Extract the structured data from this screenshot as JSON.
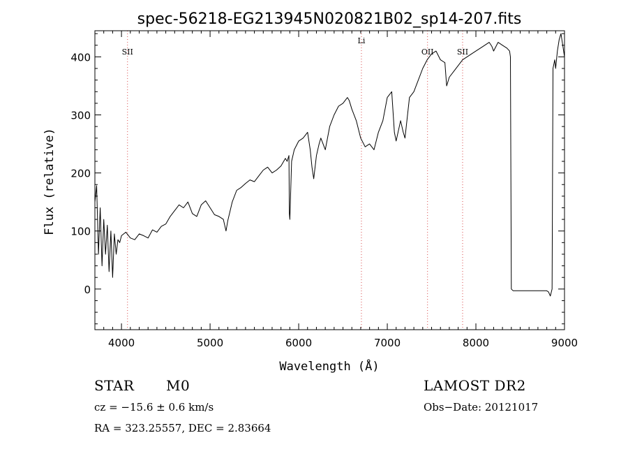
{
  "chart_data": {
    "type": "line",
    "title": "spec-56218-EG213945N020821B02_sp14-207.fits",
    "xlabel": "Wavelength (Å)",
    "ylabel": "Flux (relative)",
    "xlim": [
      3700,
      9000
    ],
    "ylim": [
      -70,
      445
    ],
    "xticks": [
      4000,
      5000,
      6000,
      7000,
      8000,
      9000
    ],
    "yticks": [
      0,
      100,
      200,
      300,
      400
    ],
    "grid": false,
    "series": [
      {
        "color": "#000000",
        "x": [
          3700,
          3720,
          3740,
          3760,
          3780,
          3800,
          3820,
          3840,
          3860,
          3880,
          3900,
          3920,
          3940,
          3960,
          3980,
          4000,
          4050,
          4100,
          4150,
          4200,
          4250,
          4300,
          4350,
          4400,
          4450,
          4500,
          4550,
          4600,
          4650,
          4700,
          4750,
          4800,
          4850,
          4900,
          4950,
          5000,
          5050,
          5100,
          5150,
          5180,
          5200,
          5250,
          5300,
          5350,
          5400,
          5450,
          5500,
          5550,
          5600,
          5650,
          5700,
          5750,
          5800,
          5850,
          5870,
          5890,
          5895,
          5900,
          5920,
          5950,
          6000,
          6050,
          6100,
          6130,
          6150,
          6170,
          6200,
          6230,
          6250,
          6300,
          6350,
          6400,
          6450,
          6500,
          6550,
          6570,
          6600,
          6650,
          6700,
          6750,
          6800,
          6850,
          6900,
          6950,
          7000,
          7050,
          7080,
          7100,
          7150,
          7180,
          7200,
          7250,
          7300,
          7350,
          7400,
          7450,
          7500,
          7550,
          7600,
          7650,
          7670,
          7700,
          7750,
          7800,
          7850,
          7900,
          7950,
          8000,
          8050,
          8100,
          8150,
          8180,
          8200,
          8250,
          8300,
          8350,
          8380,
          8390,
          8400,
          8420,
          8450,
          8500,
          8600,
          8700,
          8800,
          8820,
          8840,
          8860,
          8870,
          8890,
          8900,
          8920,
          8940,
          8960,
          8980,
          9000
        ],
        "y": [
          150,
          178,
          60,
          140,
          40,
          120,
          60,
          110,
          30,
          100,
          20,
          95,
          60,
          85,
          80,
          92,
          98,
          88,
          85,
          95,
          92,
          88,
          102,
          98,
          108,
          112,
          125,
          135,
          145,
          140,
          150,
          130,
          125,
          145,
          152,
          140,
          128,
          125,
          120,
          100,
          118,
          150,
          170,
          175,
          182,
          188,
          185,
          195,
          205,
          210,
          200,
          205,
          212,
          225,
          220,
          230,
          130,
          120,
          220,
          240,
          255,
          260,
          270,
          240,
          210,
          190,
          230,
          250,
          260,
          240,
          280,
          300,
          315,
          320,
          330,
          325,
          310,
          290,
          260,
          245,
          250,
          240,
          270,
          290,
          330,
          340,
          270,
          255,
          290,
          270,
          260,
          330,
          340,
          360,
          380,
          395,
          405,
          410,
          395,
          390,
          350,
          365,
          375,
          385,
          395,
          400,
          405,
          410,
          415,
          420,
          425,
          418,
          410,
          425,
          420,
          415,
          410,
          400,
          0,
          -3,
          -3,
          -3,
          -3,
          -3,
          -3,
          -5,
          -12,
          0,
          380,
          395,
          380,
          410,
          430,
          440,
          420,
          400
        ]
      }
    ],
    "reference_lines": [
      {
        "label": "SII",
        "x": 4068
      },
      {
        "label": "Li",
        "x": 6708
      },
      {
        "label": "OII",
        "x": 7454
      },
      {
        "label": "SII",
        "x": 7850
      }
    ]
  },
  "info": {
    "class": "STAR",
    "subclass": "M0",
    "cz": "cz = −15.6 ± 0.6 km/s",
    "coords": "RA = 323.25557, DEC =    2.83664",
    "survey": "LAMOST DR2",
    "obsdate": "Obs−Date: 20121017"
  }
}
